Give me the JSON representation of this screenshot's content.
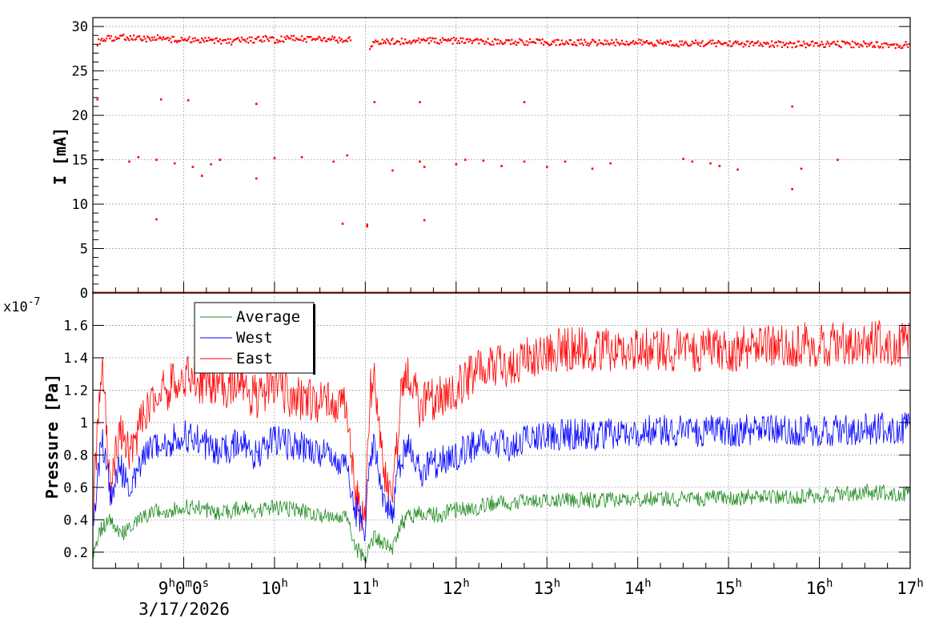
{
  "chart_data": [
    {
      "type": "scatter",
      "ylabel": "I [mA]",
      "ylim": [
        0,
        31
      ],
      "yticks": [
        0,
        5,
        10,
        15,
        20,
        25,
        30
      ],
      "xlim": [
        8.0,
        17.0
      ],
      "grid": true,
      "series": [
        {
          "color": "#ff0000",
          "x": [
            8.05,
            8.1,
            8.2,
            8.3,
            8.4,
            8.5,
            8.6,
            8.7,
            8.8,
            8.9,
            9.0,
            9.1,
            9.2,
            9.3,
            9.4,
            9.5,
            9.6,
            9.7,
            9.8,
            9.9,
            10.0,
            10.1,
            10.2,
            10.3,
            10.4,
            10.5,
            10.6,
            10.7,
            10.85,
            11.05,
            11.1,
            11.2,
            11.3,
            11.5,
            11.7,
            12.0,
            12.3,
            12.6,
            13.0,
            13.3,
            13.6,
            14.0,
            14.3,
            14.6,
            15.0,
            15.3,
            15.6,
            16.0,
            16.3,
            16.6,
            16.9,
            17.0
          ],
          "values": [
            28.2,
            28.5,
            28.7,
            28.8,
            28.8,
            28.6,
            28.6,
            28.8,
            28.6,
            28.5,
            28.5,
            28.5,
            28.4,
            28.5,
            28.4,
            28.3,
            28.4,
            28.5,
            28.5,
            28.6,
            28.5,
            28.6,
            28.7,
            28.6,
            28.6,
            28.7,
            28.6,
            28.5,
            28.5,
            27.8,
            28.2,
            28.3,
            28.3,
            28.4,
            28.4,
            28.4,
            28.3,
            28.3,
            28.2,
            28.2,
            28.2,
            28.2,
            28.1,
            28.1,
            28.1,
            28.0,
            28.0,
            28.0,
            28.0,
            28.0,
            27.9,
            28.0
          ]
        }
      ],
      "outliers": {
        "x": [
          8.1,
          8.4,
          8.5,
          8.7,
          8.9,
          9.1,
          9.2,
          9.3,
          9.4,
          9.8,
          10.0,
          10.3,
          10.65,
          10.8,
          11.02,
          11.1,
          11.3,
          11.6,
          11.65,
          12.0,
          12.1,
          12.3,
          12.5,
          12.75,
          13.0,
          13.2,
          13.5,
          13.7,
          14.5,
          14.6,
          14.8,
          14.9,
          15.1,
          15.7,
          15.8,
          16.2,
          8.7,
          11.02,
          11.65,
          10.75,
          8.05,
          8.75,
          9.05,
          9.8,
          11.6,
          12.75,
          15.7
        ],
        "values": [
          15.0,
          14.8,
          15.3,
          15.0,
          14.6,
          14.2,
          13.2,
          14.5,
          15.0,
          12.9,
          15.2,
          15.3,
          14.8,
          15.5,
          7.5,
          21.5,
          13.8,
          14.8,
          14.2,
          14.5,
          15.0,
          14.9,
          14.3,
          14.8,
          14.2,
          14.8,
          14.0,
          14.6,
          15.1,
          14.8,
          14.6,
          14.3,
          13.9,
          11.7,
          14.0,
          15.0,
          8.3,
          7.7,
          8.2,
          7.8,
          21.8,
          21.8,
          21.7,
          21.3,
          21.5,
          21.5,
          21.0
        ]
      }
    },
    {
      "type": "line",
      "ylabel": "Pressure [Pa]",
      "ylim": [
        0.1,
        1.8
      ],
      "yticks": [
        0.2,
        0.4,
        0.6,
        0.8,
        1.0,
        1.2,
        1.4,
        1.6
      ],
      "ytick_labels": [
        "0.2",
        "0.4",
        "0.6",
        "0.8",
        "1",
        "1.2",
        "1.4",
        "1.6"
      ],
      "exponent_label": "x10",
      "exponent_value": "-7",
      "xlim": [
        8.0,
        17.0
      ],
      "grid": true,
      "legend_placement": "top-left",
      "series": [
        {
          "name": "Average",
          "color": "#228b22",
          "x": [
            8.0,
            8.1,
            8.2,
            8.3,
            8.4,
            8.5,
            8.6,
            8.7,
            8.8,
            8.9,
            9.0,
            9.2,
            9.4,
            9.6,
            9.8,
            10.0,
            10.2,
            10.4,
            10.6,
            10.8,
            10.9,
            11.0,
            11.1,
            11.2,
            11.3,
            11.4,
            11.5,
            11.6,
            11.8,
            12.0,
            12.2,
            12.4,
            12.6,
            12.8,
            13.0,
            13.2,
            13.5,
            14.0,
            14.5,
            15.0,
            15.5,
            16.0,
            16.5,
            17.0
          ],
          "values": [
            0.2,
            0.35,
            0.4,
            0.3,
            0.35,
            0.4,
            0.42,
            0.45,
            0.45,
            0.47,
            0.48,
            0.47,
            0.43,
            0.47,
            0.46,
            0.48,
            0.46,
            0.45,
            0.42,
            0.42,
            0.22,
            0.16,
            0.3,
            0.25,
            0.22,
            0.38,
            0.42,
            0.44,
            0.43,
            0.46,
            0.47,
            0.5,
            0.5,
            0.52,
            0.52,
            0.53,
            0.52,
            0.53,
            0.53,
            0.54,
            0.54,
            0.55,
            0.57,
            0.56
          ]
        },
        {
          "name": "West",
          "color": "#0000ff",
          "x": [
            8.0,
            8.1,
            8.2,
            8.3,
            8.4,
            8.5,
            8.6,
            8.7,
            8.8,
            8.9,
            9.0,
            9.2,
            9.4,
            9.6,
            9.8,
            10.0,
            10.2,
            10.4,
            10.6,
            10.8,
            10.9,
            11.0,
            11.05,
            11.1,
            11.2,
            11.3,
            11.4,
            11.5,
            11.6,
            11.8,
            12.0,
            12.2,
            12.4,
            12.6,
            12.8,
            13.0,
            13.5,
            14.0,
            14.5,
            15.0,
            15.5,
            16.0,
            16.5,
            17.0
          ],
          "values": [
            0.35,
            0.9,
            0.55,
            0.72,
            0.6,
            0.7,
            0.8,
            0.85,
            0.87,
            0.9,
            0.92,
            0.88,
            0.8,
            0.88,
            0.8,
            0.9,
            0.85,
            0.85,
            0.8,
            0.72,
            0.45,
            0.35,
            0.8,
            0.85,
            0.5,
            0.45,
            0.8,
            0.85,
            0.7,
            0.75,
            0.8,
            0.85,
            0.88,
            0.85,
            0.92,
            0.93,
            0.92,
            0.95,
            0.95,
            0.95,
            0.96,
            0.95,
            0.96,
            0.97
          ]
        },
        {
          "name": "East",
          "color": "#ff0000",
          "x": [
            8.0,
            8.1,
            8.2,
            8.3,
            8.4,
            8.5,
            8.6,
            8.7,
            8.8,
            8.9,
            9.0,
            9.2,
            9.4,
            9.6,
            9.8,
            10.0,
            10.2,
            10.4,
            10.6,
            10.8,
            10.9,
            11.0,
            11.05,
            11.1,
            11.2,
            11.3,
            11.4,
            11.5,
            11.6,
            11.8,
            12.0,
            12.2,
            12.4,
            12.6,
            12.8,
            13.0,
            13.5,
            14.0,
            14.5,
            15.0,
            15.5,
            16.0,
            16.5,
            17.0
          ],
          "values": [
            0.45,
            1.35,
            0.6,
            0.95,
            0.8,
            0.95,
            1.05,
            1.15,
            1.2,
            1.25,
            1.3,
            1.25,
            1.2,
            1.25,
            1.15,
            1.25,
            1.15,
            1.15,
            1.12,
            1.1,
            0.55,
            0.4,
            1.2,
            1.25,
            0.7,
            0.5,
            1.2,
            1.3,
            1.1,
            1.15,
            1.2,
            1.3,
            1.35,
            1.35,
            1.4,
            1.45,
            1.45,
            1.45,
            1.45,
            1.45,
            1.48,
            1.48,
            1.5,
            1.48
          ]
        }
      ]
    }
  ],
  "xaxis": {
    "ticks": [
      {
        "h": 9,
        "base": "9",
        "sup": "h",
        "rest": "0",
        "sup2": "m",
        "rest2": "0",
        "sup3": "s"
      },
      {
        "h": 10,
        "base": "10",
        "sup": "h"
      },
      {
        "h": 11,
        "base": "11",
        "sup": "h"
      },
      {
        "h": 12,
        "base": "12",
        "sup": "h"
      },
      {
        "h": 13,
        "base": "13",
        "sup": "h"
      },
      {
        "h": 14,
        "base": "14",
        "sup": "h"
      },
      {
        "h": 15,
        "base": "15",
        "sup": "h"
      },
      {
        "h": 16,
        "base": "16",
        "sup": "h"
      },
      {
        "h": 17,
        "base": "17",
        "sup": "h"
      }
    ],
    "date_label": "3/17/2026"
  }
}
